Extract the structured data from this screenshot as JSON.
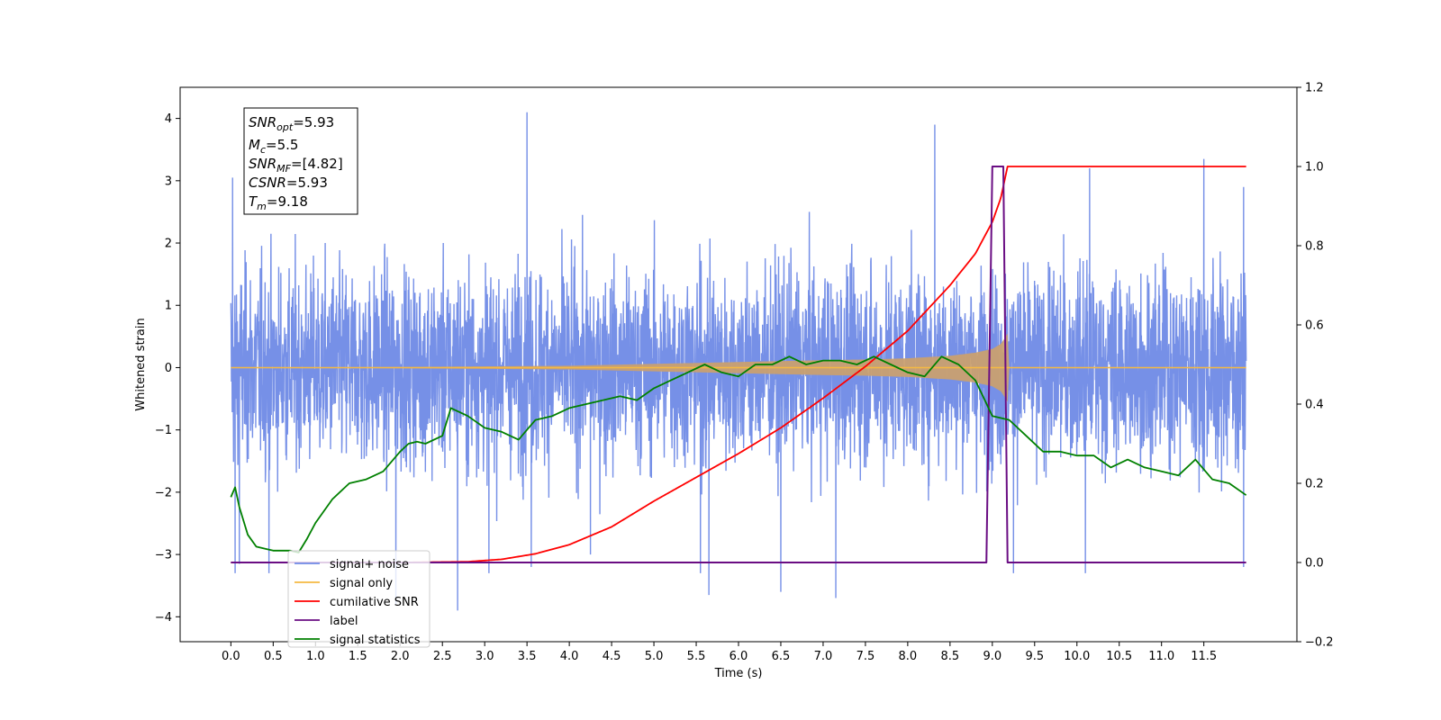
{
  "chart_data": {
    "type": "line",
    "xlabel": "Time (s)",
    "ylabel_left": "Whitened strain",
    "xlim": [
      -0.6,
      12.6
    ],
    "ylim_left": [
      -4.4,
      4.5
    ],
    "ylim_right": [
      -0.2,
      1.2
    ],
    "x_ticks": [
      0.0,
      0.5,
      1.0,
      1.5,
      2.0,
      2.5,
      3.0,
      3.5,
      4.0,
      4.5,
      5.0,
      5.5,
      6.0,
      6.5,
      7.0,
      7.5,
      8.0,
      8.5,
      9.0,
      9.5,
      10.0,
      10.5,
      11.0,
      11.5
    ],
    "x_tick_labels": [
      "0.0",
      "0.5",
      "1.0",
      "1.5",
      "2.0",
      "2.5",
      "3.0",
      "3.5",
      "4.0",
      "4.5",
      "5.0",
      "5.5",
      "6.0",
      "6.5",
      "7.0",
      "7.5",
      "8.0",
      "8.5",
      "9.0",
      "9.5",
      "10.0",
      "10.5",
      "11.0",
      "11.5"
    ],
    "y_left_ticks": [
      -4,
      -3,
      -2,
      -1,
      0,
      1,
      2,
      3,
      4
    ],
    "y_left_tick_labels": [
      "−4",
      "−3",
      "−2",
      "−1",
      "0",
      "1",
      "2",
      "3",
      "4"
    ],
    "y_right_ticks": [
      -0.2,
      0.0,
      0.2,
      0.4,
      0.6,
      0.8,
      1.0,
      1.2
    ],
    "y_right_tick_labels": [
      "−0.2",
      "0.0",
      "0.2",
      "0.4",
      "0.6",
      "0.8",
      "1.0",
      "1.2"
    ],
    "grid": false,
    "legend_position": "lower-left",
    "annotation": {
      "snr_opt": {
        "sym": "SNR",
        "sub": "opt",
        "value": "=5.93"
      },
      "mc": {
        "sym": "M",
        "sub": "c",
        "value": "=5.5"
      },
      "snr_mf": {
        "sym": "SNR",
        "sub": "MF",
        "value": "=[4.82]"
      },
      "csnr": {
        "sym": "CSNR",
        "value": "=5.93"
      },
      "tm": {
        "sym": "T",
        "sub": "m",
        "value": "=9.18"
      }
    },
    "series": [
      {
        "name": "signal+ noise",
        "color": "#6f8ae6",
        "axis": "left",
        "render": "noise-band",
        "x_range": [
          0.0,
          12.0
        ],
        "typical_amplitude": 2.0,
        "peak_points": [
          {
            "x": 0.02,
            "y": 3.05
          },
          {
            "x": 0.05,
            "y": -3.3
          },
          {
            "x": 0.1,
            "y": -3.15
          },
          {
            "x": 0.45,
            "y": -3.3
          },
          {
            "x": 1.95,
            "y": -3.8
          },
          {
            "x": 2.68,
            "y": -3.9
          },
          {
            "x": 3.05,
            "y": -3.3
          },
          {
            "x": 3.5,
            "y": 4.1
          },
          {
            "x": 3.55,
            "y": -3.2
          },
          {
            "x": 4.25,
            "y": -3.0
          },
          {
            "x": 5.55,
            "y": -3.3
          },
          {
            "x": 5.65,
            "y": -3.65
          },
          {
            "x": 6.5,
            "y": -3.6
          },
          {
            "x": 7.15,
            "y": -3.7
          },
          {
            "x": 8.32,
            "y": 3.9
          },
          {
            "x": 9.25,
            "y": -3.3
          },
          {
            "x": 10.1,
            "y": -3.3
          },
          {
            "x": 10.15,
            "y": 3.2
          },
          {
            "x": 11.5,
            "y": 3.35
          },
          {
            "x": 11.97,
            "y": 2.9
          },
          {
            "x": 11.97,
            "y": -3.2
          }
        ]
      },
      {
        "name": "signal only",
        "color": "#f5b942",
        "axis": "left",
        "render": "chirp-envelope",
        "x": [
          0.0,
          2.0,
          4.0,
          5.0,
          6.0,
          7.0,
          7.5,
          8.0,
          8.5,
          8.8,
          9.0,
          9.1,
          9.15,
          9.18,
          9.2,
          12.0
        ],
        "envelope": [
          0.0,
          0.01,
          0.03,
          0.06,
          0.09,
          0.12,
          0.13,
          0.15,
          0.19,
          0.24,
          0.3,
          0.38,
          0.48,
          0.55,
          0.0,
          0.0
        ]
      },
      {
        "name": "cumilative SNR",
        "color": "#ff0000",
        "axis": "right",
        "render": "line",
        "x": [
          0.0,
          2.0,
          2.8,
          3.2,
          3.6,
          4.0,
          4.5,
          5.0,
          5.5,
          6.0,
          6.5,
          7.0,
          7.5,
          8.0,
          8.5,
          8.8,
          9.0,
          9.1,
          9.15,
          9.18,
          9.2,
          12.0
        ],
        "y": [
          0.0,
          0.0,
          0.002,
          0.008,
          0.022,
          0.045,
          0.09,
          0.155,
          0.215,
          0.275,
          0.34,
          0.415,
          0.495,
          0.585,
          0.7,
          0.78,
          0.86,
          0.92,
          0.97,
          1.0,
          1.0,
          1.0
        ]
      },
      {
        "name": "label",
        "color": "#6a0d83",
        "axis": "right",
        "render": "line",
        "x": [
          0.0,
          8.93,
          9.0,
          9.13,
          9.18,
          12.0
        ],
        "y": [
          0.0,
          0.0,
          1.0,
          1.0,
          0.0,
          0.0
        ]
      },
      {
        "name": "signal statistics",
        "color": "#008000",
        "axis": "right",
        "render": "line",
        "x": [
          0.0,
          0.05,
          0.1,
          0.2,
          0.3,
          0.4,
          0.5,
          0.7,
          0.8,
          0.9,
          1.0,
          1.2,
          1.4,
          1.6,
          1.8,
          2.0,
          2.1,
          2.2,
          2.3,
          2.5,
          2.6,
          2.8,
          3.0,
          3.2,
          3.4,
          3.6,
          3.8,
          4.0,
          4.2,
          4.4,
          4.6,
          4.8,
          5.0,
          5.2,
          5.4,
          5.6,
          5.8,
          6.0,
          6.2,
          6.4,
          6.6,
          6.8,
          7.0,
          7.2,
          7.4,
          7.6,
          7.8,
          8.0,
          8.2,
          8.4,
          8.6,
          8.8,
          9.0,
          9.2,
          9.4,
          9.6,
          9.8,
          10.0,
          10.2,
          10.4,
          10.6,
          10.8,
          11.0,
          11.2,
          11.4,
          11.6,
          11.8,
          12.0
        ],
        "y": [
          0.165,
          0.19,
          0.14,
          0.07,
          0.04,
          0.035,
          0.03,
          0.03,
          0.025,
          0.06,
          0.1,
          0.16,
          0.2,
          0.21,
          0.23,
          0.28,
          0.3,
          0.305,
          0.3,
          0.32,
          0.39,
          0.37,
          0.34,
          0.33,
          0.31,
          0.36,
          0.37,
          0.39,
          0.4,
          0.41,
          0.42,
          0.41,
          0.44,
          0.46,
          0.48,
          0.5,
          0.48,
          0.47,
          0.5,
          0.5,
          0.52,
          0.5,
          0.51,
          0.51,
          0.5,
          0.52,
          0.5,
          0.48,
          0.47,
          0.52,
          0.5,
          0.46,
          0.37,
          0.36,
          0.32,
          0.28,
          0.28,
          0.27,
          0.27,
          0.24,
          0.26,
          0.24,
          0.23,
          0.22,
          0.26,
          0.21,
          0.2,
          0.17
        ]
      }
    ],
    "legend": [
      {
        "label": "signal+ noise",
        "color": "#6f8ae6"
      },
      {
        "label": "signal only",
        "color": "#f5b942"
      },
      {
        "label": "cumilative SNR",
        "color": "#ff0000"
      },
      {
        "label": "label",
        "color": "#6a0d83"
      },
      {
        "label": "signal statistics",
        "color": "#008000"
      }
    ],
    "colors": {
      "signal_fill": "#c9a070"
    }
  }
}
